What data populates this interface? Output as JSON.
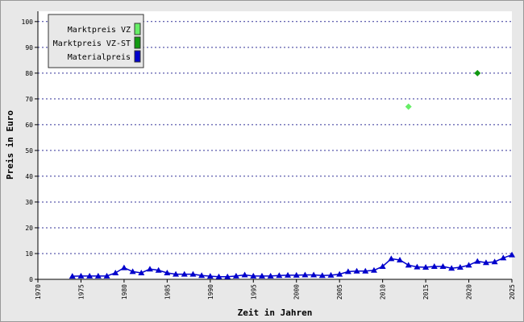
{
  "chart_data": {
    "type": "line",
    "x_label": "Zeit in Jahren",
    "y_label": "Preis in Euro",
    "xlim": [
      1970,
      2025
    ],
    "xticks": [
      1970,
      1975,
      1980,
      1985,
      1990,
      1995,
      2000,
      2005,
      2010,
      2015,
      2020,
      2025
    ],
    "ylim": [
      0,
      104
    ],
    "yticks": [
      0,
      10,
      20,
      30,
      40,
      50,
      60,
      70,
      80,
      90,
      100
    ],
    "grid": true,
    "legend": "top-left",
    "series": [
      {
        "name": "Marktpreis VZ",
        "color": "#66ee66",
        "marker": "diamond",
        "line": false,
        "x": [
          2013
        ],
        "values": [
          67
        ]
      },
      {
        "name": "Marktpreis VZ-ST",
        "color": "#119911",
        "marker": "diamond",
        "line": false,
        "x": [
          2021
        ],
        "values": [
          80
        ]
      },
      {
        "name": "Materialpreis",
        "color": "#0000cc",
        "marker": "triangle",
        "line": true,
        "x": [
          1974,
          1975,
          1976,
          1977,
          1978,
          1979,
          1980,
          1981,
          1982,
          1983,
          1984,
          1985,
          1986,
          1987,
          1988,
          1989,
          1990,
          1991,
          1992,
          1993,
          1994,
          1995,
          1996,
          1997,
          1998,
          1999,
          2000,
          2001,
          2002,
          2003,
          2004,
          2005,
          2006,
          2007,
          2008,
          2009,
          2010,
          2011,
          2012,
          2013,
          2014,
          2015,
          2016,
          2017,
          2018,
          2019,
          2020,
          2021,
          2022,
          2023,
          2024,
          2025
        ],
        "values": [
          1.2,
          1.3,
          1.3,
          1.3,
          1.3,
          2.5,
          4.5,
          3.0,
          2.5,
          4.0,
          3.5,
          2.5,
          2.0,
          2.0,
          2.0,
          1.5,
          1.2,
          1.0,
          1.0,
          1.3,
          1.7,
          1.3,
          1.3,
          1.3,
          1.5,
          1.6,
          1.6,
          1.7,
          1.7,
          1.5,
          1.6,
          2.0,
          3.0,
          3.2,
          3.2,
          3.5,
          5.0,
          8.0,
          7.5,
          5.5,
          4.8,
          4.7,
          5.0,
          5.0,
          4.3,
          4.7,
          5.5,
          7.0,
          6.5,
          6.8,
          8.3,
          9.5
        ]
      }
    ]
  }
}
